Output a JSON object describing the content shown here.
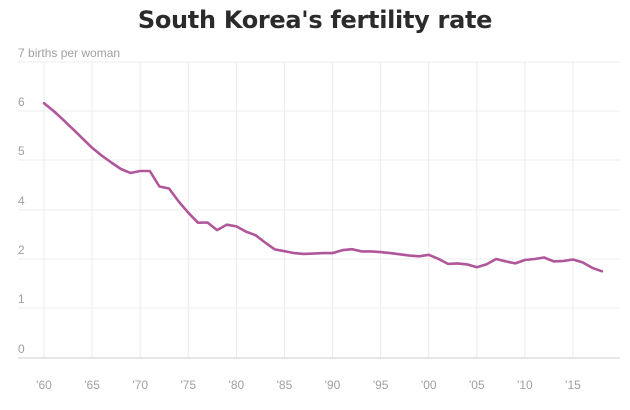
{
  "chart_data": {
    "type": "line",
    "title": "South Korea's fertility rate",
    "unit_label": "births per woman",
    "xlabel": "",
    "ylabel": "",
    "xlim": [
      1960,
      2018
    ],
    "ylim": [
      0,
      7
    ],
    "y_ticks": [
      "0",
      "1",
      "2",
      "4",
      "5",
      "6",
      "7"
    ],
    "y_tick_values": [
      0,
      1,
      2,
      4,
      5,
      6,
      7
    ],
    "x_ticks": [
      "'60",
      "'65",
      "'70",
      "'75",
      "'80",
      "'85",
      "'90",
      "'95",
      "'00",
      "'05",
      "'10",
      "'15"
    ],
    "x_tick_values": [
      1960,
      1965,
      1970,
      1975,
      1980,
      1985,
      1990,
      1995,
      2000,
      2005,
      2010,
      2015
    ],
    "grid": true,
    "legend": "none",
    "colors": {
      "line": "#b0569a",
      "grid": "#ececec",
      "baseline": "#cfcfcf",
      "tick_text": "#a0a0a0",
      "title": "#2b2b2b"
    },
    "series": [
      {
        "x": [
          1960,
          1961,
          1962,
          1963,
          1964,
          1965,
          1966,
          1967,
          1968,
          1969,
          1970,
          1971,
          1972,
          1973,
          1974,
          1975,
          1976,
          1977,
          1978,
          1979,
          1980,
          1981,
          1982,
          1983,
          1984,
          1985,
          1986,
          1987,
          1988,
          1989,
          1990,
          1991,
          1992,
          1993,
          1994,
          1995,
          1996,
          1997,
          1998,
          1999,
          2000,
          2001,
          2002,
          2003,
          2004,
          2005,
          2006,
          2007,
          2008,
          2009,
          2010,
          2011,
          2012,
          2013,
          2014,
          2015,
          2016,
          2017,
          2018
        ],
        "y": [
          6.16,
          6.0,
          5.82,
          5.63,
          5.44,
          5.25,
          5.09,
          4.95,
          4.82,
          4.74,
          4.78,
          4.78,
          4.47,
          4.43,
          4.17,
          3.89,
          3.48,
          3.49,
          3.18,
          3.4,
          3.33,
          3.12,
          2.97,
          2.67,
          2.39,
          2.32,
          2.24,
          2.21,
          2.22,
          2.24,
          2.24,
          2.36,
          2.4,
          2.31,
          2.31,
          2.28,
          2.24,
          2.19,
          2.14,
          2.11,
          2.17,
          2.01,
          1.9,
          1.91,
          1.89,
          1.83,
          1.89,
          2.0,
          1.95,
          1.91,
          1.98,
          2.0,
          2.06,
          1.95,
          1.96,
          1.99,
          1.93,
          1.82,
          1.75
        ]
      }
    ]
  }
}
